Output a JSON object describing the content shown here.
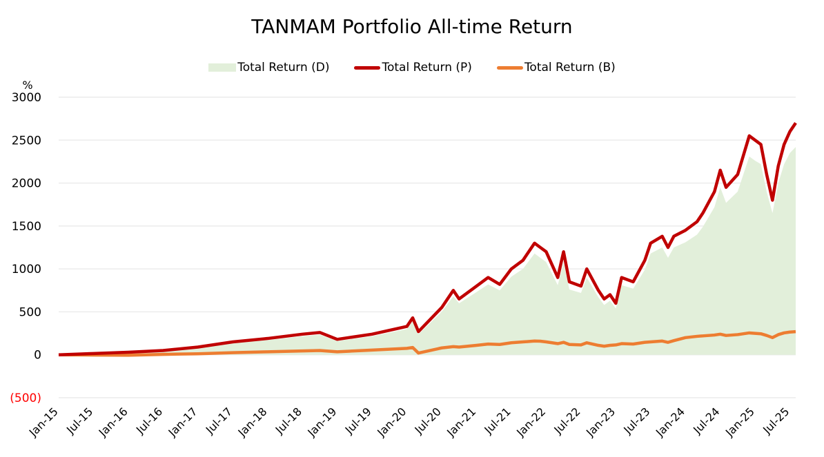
{
  "chart_data": {
    "type": "line",
    "title": "TANMAM Portfolio All-time Return",
    "ylabel": "%",
    "ylim": [
      -500,
      3000
    ],
    "yticks": [
      3000,
      2500,
      2000,
      1500,
      1000,
      500,
      0,
      -500
    ],
    "ytick_labels": [
      "3000",
      "2500",
      "2000",
      "1500",
      "1000",
      "500",
      "0",
      "(500)"
    ],
    "xticks": [
      "Jan-15",
      "Jul-15",
      "Jan-16",
      "Jul-16",
      "Jan-17",
      "Jul-17",
      "Jan-18",
      "Jul-18",
      "Jan-19",
      "Jul-19",
      "Jan-20",
      "Jul-20",
      "Jan-21",
      "Jul-21",
      "Jan-22",
      "Jul-22",
      "Jan-23",
      "Jul-23",
      "Jan-24",
      "Jul-24",
      "Jan-25",
      "Jul-25"
    ],
    "xlim": [
      "2015-01",
      "2025-07"
    ],
    "grid": true,
    "legend": "top",
    "colors": {
      "D": "#e2efda",
      "P": "#c00000",
      "B": "#ed7d31",
      "negative_label": "#ff0000"
    },
    "x": [
      "2015-01",
      "2015-07",
      "2016-01",
      "2016-07",
      "2017-01",
      "2017-07",
      "2018-01",
      "2018-07",
      "2018-10",
      "2019-01",
      "2019-07",
      "2020-01",
      "2020-02",
      "2020-03",
      "2020-07",
      "2020-09",
      "2020-10",
      "2021-01",
      "2021-03",
      "2021-05",
      "2021-07",
      "2021-09",
      "2021-11",
      "2021-12",
      "2022-01",
      "2022-03",
      "2022-04",
      "2022-05",
      "2022-07",
      "2022-08",
      "2022-10",
      "2022-11",
      "2022-12",
      "2023-01",
      "2023-02",
      "2023-04",
      "2023-06",
      "2023-07",
      "2023-09",
      "2023-10",
      "2023-11",
      "2024-01",
      "2024-03",
      "2024-04",
      "2024-06",
      "2024-07",
      "2024-08",
      "2024-10",
      "2024-12",
      "2025-01",
      "2025-02",
      "2025-03",
      "2025-04",
      "2025-05",
      "2025-06",
      "2025-07",
      "2025-08"
    ],
    "series": [
      {
        "name": "Total Return (D)",
        "kind": "area",
        "values": [
          0,
          12,
          25,
          42,
          78,
          135,
          170,
          215,
          235,
          160,
          215,
          300,
          390,
          240,
          500,
          680,
          600,
          730,
          820,
          750,
          910,
          1000,
          1180,
          1130,
          1080,
          810,
          1080,
          760,
          720,
          900,
          670,
          580,
          630,
          540,
          810,
          770,
          990,
          1180,
          1250,
          1130,
          1250,
          1310,
          1400,
          1490,
          1720,
          1950,
          1770,
          1900,
          2310,
          2260,
          2220,
          1900,
          1650,
          2000,
          2220,
          2350,
          2420
        ]
      },
      {
        "name": "Total Return (P)",
        "kind": "line",
        "values": [
          0,
          15,
          30,
          50,
          90,
          150,
          190,
          240,
          260,
          180,
          240,
          330,
          430,
          270,
          550,
          750,
          650,
          800,
          900,
          820,
          1000,
          1100,
          1300,
          1250,
          1200,
          900,
          1200,
          850,
          800,
          1000,
          750,
          650,
          700,
          600,
          900,
          850,
          1100,
          1300,
          1380,
          1250,
          1380,
          1450,
          1550,
          1650,
          1900,
          2150,
          1950,
          2100,
          2550,
          2500,
          2450,
          2100,
          1800,
          2200,
          2450,
          2600,
          2700
        ]
      },
      {
        "name": "Total Return (B)",
        "kind": "line",
        "values": [
          0,
          -3,
          -5,
          5,
          12,
          25,
          35,
          45,
          50,
          35,
          55,
          75,
          85,
          20,
          80,
          95,
          90,
          110,
          125,
          120,
          140,
          150,
          160,
          158,
          150,
          130,
          145,
          120,
          115,
          140,
          110,
          100,
          110,
          115,
          130,
          125,
          145,
          150,
          160,
          145,
          165,
          200,
          215,
          220,
          230,
          240,
          225,
          235,
          255,
          250,
          245,
          225,
          200,
          235,
          255,
          265,
          270
        ]
      }
    ]
  }
}
